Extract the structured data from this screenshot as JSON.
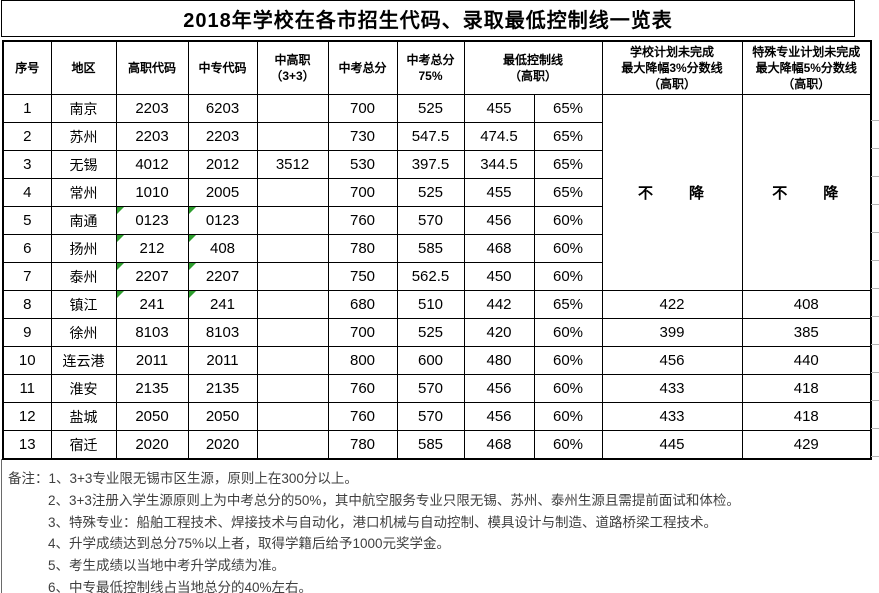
{
  "title": "2018年学校在各市招生代码、录取最低控制线一览表",
  "colors": {
    "border": "#000000",
    "notes_text": "#3f3f3f",
    "triangle_green": "#2e9e2e",
    "faint_gridline": "#b5b5b5",
    "background": "#ffffff"
  },
  "table": {
    "columns": [
      {
        "key": "no",
        "label": [
          "序号"
        ]
      },
      {
        "key": "city",
        "label": [
          "地区"
        ]
      },
      {
        "key": "gz",
        "label": [
          "高职代码"
        ]
      },
      {
        "key": "zz",
        "label": [
          "中专代码"
        ]
      },
      {
        "key": "zgz",
        "label": [
          "中高职",
          "（3+3）"
        ]
      },
      {
        "key": "total",
        "label": [
          "中考总分"
        ]
      },
      {
        "key": "p75",
        "label": [
          "中考总分",
          "75%"
        ]
      },
      {
        "key": "min",
        "label": [
          "最低控制线",
          "（高职）"
        ],
        "span": 2
      },
      {
        "key": "drop3",
        "label": [
          "学校计划未完成",
          "最大降幅3%分数线",
          "（高职）"
        ]
      },
      {
        "key": "drop5",
        "label": [
          "特殊专业计划未完成",
          "最大降幅5%分数线",
          "（高职）"
        ]
      }
    ],
    "no_reduction_label": "不　　降",
    "merged_no_reduction_row_count": 7,
    "rows": [
      {
        "no": "1",
        "city": "南京",
        "gz": "2203",
        "zz": "6203",
        "zgz": "",
        "total": "700",
        "p75": "525",
        "min": "455",
        "pct": "65%",
        "drop3": "",
        "drop5": "",
        "text_format_flag": false
      },
      {
        "no": "2",
        "city": "苏州",
        "gz": "2203",
        "zz": "2203",
        "zgz": "",
        "total": "730",
        "p75": "547.5",
        "min": "474.5",
        "pct": "65%",
        "drop3": "",
        "drop5": "",
        "text_format_flag": false
      },
      {
        "no": "3",
        "city": "无锡",
        "gz": "4012",
        "zz": "2012",
        "zgz": "3512",
        "total": "530",
        "p75": "397.5",
        "min": "344.5",
        "pct": "65%",
        "drop3": "",
        "drop5": "",
        "text_format_flag": false
      },
      {
        "no": "4",
        "city": "常州",
        "gz": "1010",
        "zz": "2005",
        "zgz": "",
        "total": "700",
        "p75": "525",
        "min": "455",
        "pct": "65%",
        "drop3": "",
        "drop5": "",
        "text_format_flag": false
      },
      {
        "no": "5",
        "city": "南通",
        "gz": "0123",
        "zz": "0123",
        "zgz": "",
        "total": "760",
        "p75": "570",
        "min": "456",
        "pct": "60%",
        "drop3": "",
        "drop5": "",
        "text_format_flag": true
      },
      {
        "no": "6",
        "city": "扬州",
        "gz": "212",
        "zz": "408",
        "zgz": "",
        "total": "780",
        "p75": "585",
        "min": "468",
        "pct": "60%",
        "drop3": "",
        "drop5": "",
        "text_format_flag": true
      },
      {
        "no": "7",
        "city": "泰州",
        "gz": "2207",
        "zz": "2207",
        "zgz": "",
        "total": "750",
        "p75": "562.5",
        "min": "450",
        "pct": "60%",
        "drop3": "",
        "drop5": "",
        "text_format_flag": true
      },
      {
        "no": "8",
        "city": "镇江",
        "gz": "241",
        "zz": "241",
        "zgz": "",
        "total": "680",
        "p75": "510",
        "min": "442",
        "pct": "65%",
        "drop3": "422",
        "drop5": "408",
        "text_format_flag": true
      },
      {
        "no": "9",
        "city": "徐州",
        "gz": "8103",
        "zz": "8103",
        "zgz": "",
        "total": "700",
        "p75": "525",
        "min": "420",
        "pct": "60%",
        "drop3": "399",
        "drop5": "385",
        "text_format_flag": false
      },
      {
        "no": "10",
        "city": "连云港",
        "gz": "2011",
        "zz": "2011",
        "zgz": "",
        "total": "800",
        "p75": "600",
        "min": "480",
        "pct": "60%",
        "drop3": "456",
        "drop5": "440",
        "text_format_flag": false
      },
      {
        "no": "11",
        "city": "淮安",
        "gz": "2135",
        "zz": "2135",
        "zgz": "",
        "total": "760",
        "p75": "570",
        "min": "456",
        "pct": "60%",
        "drop3": "433",
        "drop5": "418",
        "text_format_flag": false
      },
      {
        "no": "12",
        "city": "盐城",
        "gz": "2050",
        "zz": "2050",
        "zgz": "",
        "total": "760",
        "p75": "570",
        "min": "456",
        "pct": "60%",
        "drop3": "433",
        "drop5": "418",
        "text_format_flag": false
      },
      {
        "no": "13",
        "city": "宿迁",
        "gz": "2020",
        "zz": "2020",
        "zgz": "",
        "total": "780",
        "p75": "585",
        "min": "468",
        "pct": "60%",
        "drop3": "445",
        "drop5": "429",
        "text_format_flag": false
      }
    ]
  },
  "notes": {
    "label": "备注：",
    "items": [
      "1、3+3专业限无锡市区生源，原则上在300分以上。",
      "2、3+3注册入学生源原则上为中考总分的50%，其中航空服务专业只限无锡、苏州、泰州生源且需提前面试和体检。",
      "3、特殊专业：船舶工程技术、焊接技术与自动化，港口机械与自动控制、模具设计与制造、道路桥梁工程技术。",
      "4、升学成绩达到总分75%以上者，取得学籍后给予1000元奖学金。",
      "5、考生成绩以当地中考升学成绩为准。",
      "6、中专最低控制线占当地总分的40%左右。"
    ]
  }
}
